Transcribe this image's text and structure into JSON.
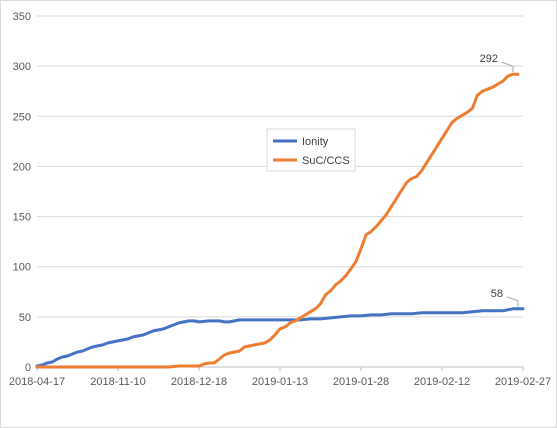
{
  "chart_data": {
    "type": "line",
    "title": "",
    "xlabel": "",
    "ylabel": "",
    "ylim": [
      0,
      350
    ],
    "y_ticks": [
      0,
      50,
      100,
      150,
      200,
      250,
      300,
      350
    ],
    "x_tick_labels": [
      "2018-04-17",
      "2018-11-10",
      "2018-12-18",
      "2019-01-13",
      "2019-01-28",
      "2019-02-12",
      "2019-02-27"
    ],
    "x_tick_positions": [
      0,
      8,
      16,
      24,
      32,
      40,
      48
    ],
    "x_range": [
      0,
      48
    ],
    "grid": {
      "horizontal": true,
      "vertical": false
    },
    "legend": {
      "position": "center-left"
    },
    "series": [
      {
        "name": "Ionity",
        "color": "#4472C4",
        "points": [
          [
            0,
            1
          ],
          [
            0.5,
            2
          ],
          [
            1,
            4
          ],
          [
            1.5,
            5
          ],
          [
            2,
            8
          ],
          [
            2.5,
            10
          ],
          [
            3,
            11
          ],
          [
            3.5,
            13
          ],
          [
            4,
            15
          ],
          [
            4.5,
            16
          ],
          [
            5,
            18
          ],
          [
            5.5,
            20
          ],
          [
            6,
            21
          ],
          [
            6.5,
            22
          ],
          [
            7,
            24
          ],
          [
            7.5,
            25
          ],
          [
            8,
            26
          ],
          [
            8.5,
            27
          ],
          [
            9,
            28
          ],
          [
            9.5,
            30
          ],
          [
            10,
            31
          ],
          [
            10.5,
            32
          ],
          [
            11,
            34
          ],
          [
            11.5,
            36
          ],
          [
            12,
            37
          ],
          [
            12.5,
            38
          ],
          [
            13,
            40
          ],
          [
            13.5,
            42
          ],
          [
            14,
            44
          ],
          [
            14.5,
            45
          ],
          [
            15,
            46
          ],
          [
            15.5,
            46
          ],
          [
            16,
            45
          ],
          [
            17,
            46
          ],
          [
            18,
            46
          ],
          [
            18.5,
            45
          ],
          [
            19,
            45
          ],
          [
            20,
            47
          ],
          [
            21,
            47
          ],
          [
            22,
            47
          ],
          [
            23,
            47
          ],
          [
            24,
            47
          ],
          [
            25,
            47
          ],
          [
            26,
            47
          ],
          [
            27,
            48
          ],
          [
            28,
            48
          ],
          [
            29,
            49
          ],
          [
            30,
            50
          ],
          [
            31,
            51
          ],
          [
            32,
            51
          ],
          [
            33,
            52
          ],
          [
            34,
            52
          ],
          [
            35,
            53
          ],
          [
            36,
            53
          ],
          [
            37,
            53
          ],
          [
            38,
            54
          ],
          [
            39,
            54
          ],
          [
            40,
            54
          ],
          [
            41,
            54
          ],
          [
            42,
            54
          ],
          [
            43,
            55
          ],
          [
            44,
            56
          ],
          [
            45,
            56
          ],
          [
            46,
            56
          ],
          [
            46.5,
            57
          ],
          [
            47,
            58
          ],
          [
            47.5,
            58
          ],
          [
            48,
            58
          ]
        ],
        "last_label": "58"
      },
      {
        "name": "SuC/CCS",
        "color": "#ED7D31",
        "points": [
          [
            0,
            0
          ],
          [
            2,
            0
          ],
          [
            4,
            0
          ],
          [
            6,
            0
          ],
          [
            8,
            0
          ],
          [
            10,
            0
          ],
          [
            12,
            0
          ],
          [
            13,
            0
          ],
          [
            14,
            1
          ],
          [
            15,
            1
          ],
          [
            16,
            1
          ],
          [
            16.5,
            3
          ],
          [
            17,
            4
          ],
          [
            17.5,
            4
          ],
          [
            18,
            8
          ],
          [
            18.5,
            12
          ],
          [
            19,
            14
          ],
          [
            19.5,
            15
          ],
          [
            20,
            16
          ],
          [
            20.5,
            20
          ],
          [
            21,
            21
          ],
          [
            21.5,
            22
          ],
          [
            22,
            23
          ],
          [
            22.5,
            24
          ],
          [
            23,
            27
          ],
          [
            23.5,
            32
          ],
          [
            24,
            38
          ],
          [
            24.5,
            40
          ],
          [
            25,
            44
          ],
          [
            25.5,
            46
          ],
          [
            26,
            49
          ],
          [
            26.5,
            52
          ],
          [
            27,
            55
          ],
          [
            27.5,
            58
          ],
          [
            28,
            63
          ],
          [
            28.5,
            72
          ],
          [
            29,
            76
          ],
          [
            29.5,
            82
          ],
          [
            30,
            86
          ],
          [
            30.5,
            91
          ],
          [
            31,
            98
          ],
          [
            31.5,
            105
          ],
          [
            32,
            118
          ],
          [
            32.5,
            132
          ],
          [
            33,
            135
          ],
          [
            33.5,
            140
          ],
          [
            34,
            146
          ],
          [
            34.5,
            152
          ],
          [
            35,
            160
          ],
          [
            35.5,
            168
          ],
          [
            36,
            176
          ],
          [
            36.5,
            184
          ],
          [
            37,
            188
          ],
          [
            37.5,
            190
          ],
          [
            38,
            196
          ],
          [
            38.5,
            204
          ],
          [
            39,
            212
          ],
          [
            39.5,
            220
          ],
          [
            40,
            228
          ],
          [
            40.5,
            236
          ],
          [
            41,
            244
          ],
          [
            41.5,
            248
          ],
          [
            42,
            251
          ],
          [
            42.5,
            254
          ],
          [
            43,
            258
          ],
          [
            43.5,
            271
          ],
          [
            44,
            275
          ],
          [
            44.5,
            277
          ],
          [
            45,
            279
          ],
          [
            45.5,
            282
          ],
          [
            46,
            285
          ],
          [
            46.5,
            290
          ],
          [
            47,
            292
          ],
          [
            47.5,
            292
          ]
        ],
        "last_label": "292"
      }
    ]
  }
}
